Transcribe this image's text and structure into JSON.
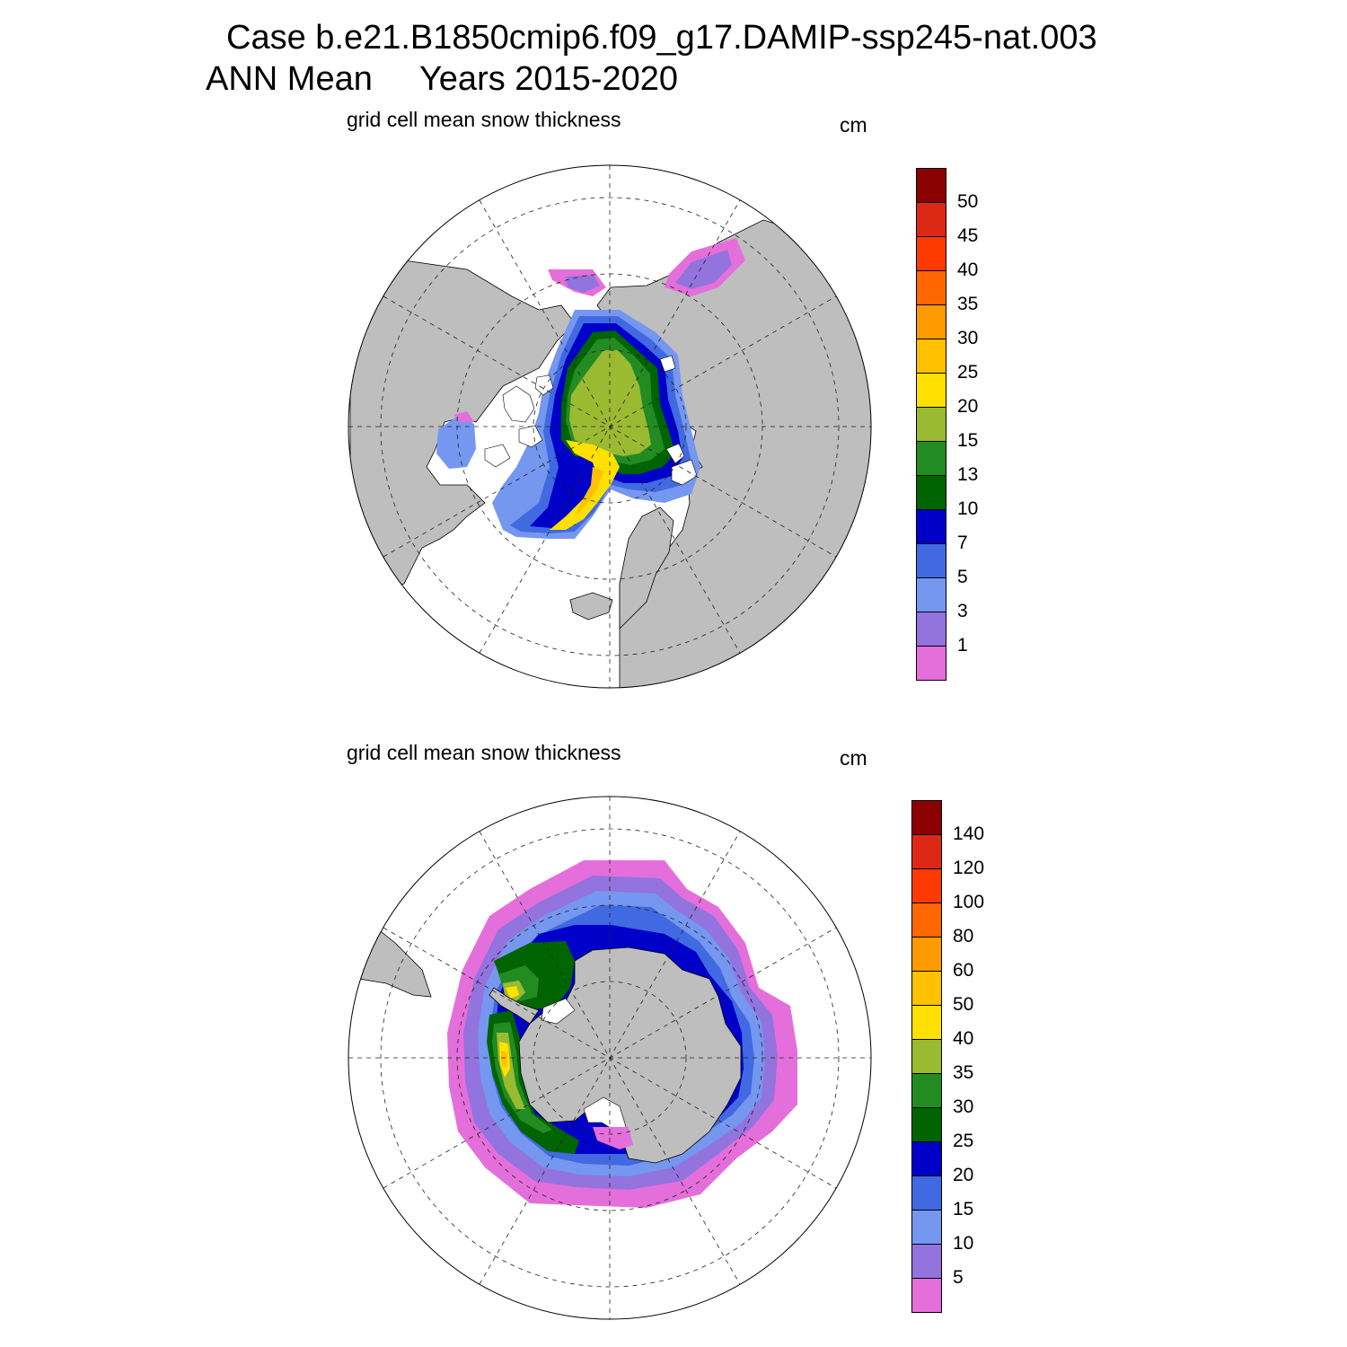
{
  "title": {
    "line1": "Case b.e21.B1850cmip6.f09_g17.DAMIP-ssp245-nat.003",
    "line2": "ANN Mean     Years 2015-2020"
  },
  "colors": {
    "land": "#bebebe",
    "ocean": "#ffffff",
    "grid": "#222222"
  },
  "panels": [
    {
      "id": "north",
      "hemisphere": "Northern",
      "variable": "grid cell mean snow thickness",
      "units": "cm",
      "colorbar": {
        "labels": [
          "1",
          "3",
          "5",
          "7",
          "10",
          "13",
          "15",
          "20",
          "25",
          "30",
          "35",
          "40",
          "45",
          "50"
        ],
        "colors": [
          "#e46fdb",
          "#9373de",
          "#7597f0",
          "#4169e1",
          "#0000c8",
          "#006400",
          "#228b22",
          "#9aba32",
          "#ffe000",
          "#ffc000",
          "#ff9a00",
          "#ff6800",
          "#ff3a00",
          "#dc2814",
          "#8b0000"
        ]
      }
    },
    {
      "id": "south",
      "hemisphere": "Southern",
      "variable": "grid cell mean snow thickness",
      "units": "cm",
      "colorbar": {
        "labels": [
          "5",
          "10",
          "15",
          "20",
          "25",
          "30",
          "35",
          "40",
          "50",
          "60",
          "80",
          "100",
          "120",
          "140"
        ],
        "colors": [
          "#e46fdb",
          "#9373de",
          "#7597f0",
          "#4169e1",
          "#0000c8",
          "#006400",
          "#228b22",
          "#9aba32",
          "#ffe000",
          "#ffc000",
          "#ff9a00",
          "#ff6800",
          "#ff3a00",
          "#dc2814",
          "#8b0000"
        ]
      }
    }
  ]
}
